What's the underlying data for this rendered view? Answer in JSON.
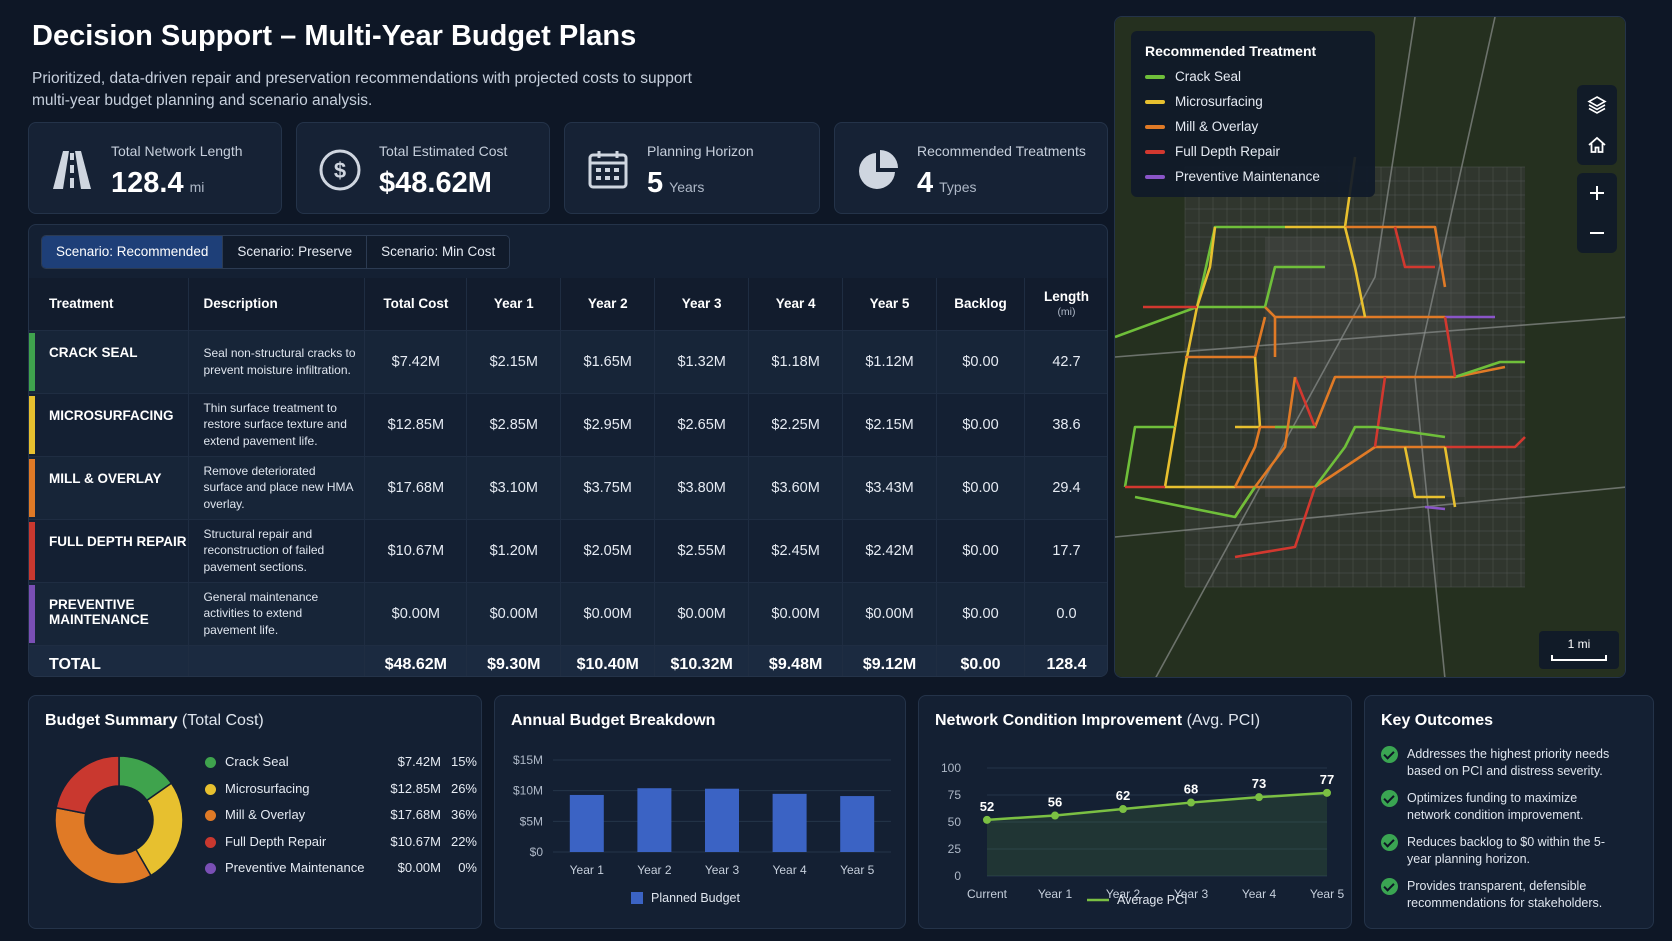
{
  "header": {
    "title": "Decision Support – Multi-Year Budget Plans",
    "subtitle": "Prioritized, data-driven repair and preservation recommendations with projected costs to support multi-year budget planning and scenario analysis."
  },
  "kpis": [
    {
      "label": "Total Network Length",
      "value": "128.4",
      "unit": "mi",
      "icon": "road-icon"
    },
    {
      "label": "Total Estimated Cost",
      "value": "$48.62M",
      "unit": "",
      "icon": "dollar-icon"
    },
    {
      "label": "Planning Horizon",
      "value": "5",
      "unit": "Years",
      "icon": "calendar-icon"
    },
    {
      "label": "Recommended Treatments",
      "value": "4",
      "unit": "Types",
      "icon": "pie-icon"
    }
  ],
  "scenarios": {
    "tabs": [
      "Scenario: Recommended",
      "Scenario: Preserve",
      "Scenario: Min Cost"
    ],
    "active": "Scenario: Recommended"
  },
  "table": {
    "headers": {
      "treatment": "Treatment",
      "description": "Description",
      "total": "Total Cost",
      "y1": "Year 1",
      "y2": "Year 2",
      "y3": "Year 3",
      "y4": "Year 4",
      "y5": "Year 5",
      "backlog": "Backlog",
      "length": "Length",
      "length_unit": "(mi)"
    },
    "rows": [
      {
        "name": "CRACK SEAL",
        "desc": "Seal non-structural cracks to prevent moisture infiltration.",
        "color": "#3fa34d",
        "total": "$7.42M",
        "y1": "$2.15M",
        "y2": "$1.65M",
        "y3": "$1.32M",
        "y4": "$1.18M",
        "y5": "$1.12M",
        "backlog": "$0.00",
        "length": "42.7"
      },
      {
        "name": "MICROSURFACING",
        "desc": "Thin surface treatment to restore surface texture and extend pavement life.",
        "color": "#e7c02f",
        "total": "$12.85M",
        "y1": "$2.85M",
        "y2": "$2.95M",
        "y3": "$2.65M",
        "y4": "$2.25M",
        "y5": "$2.15M",
        "backlog": "$0.00",
        "length": "38.6"
      },
      {
        "name": "MILL & OVERLAY",
        "desc": "Remove deteriorated surface and place new HMA overlay.",
        "color": "#e07a26",
        "total": "$17.68M",
        "y1": "$3.10M",
        "y2": "$3.75M",
        "y3": "$3.80M",
        "y4": "$3.60M",
        "y5": "$3.43M",
        "backlog": "$0.00",
        "length": "29.4"
      },
      {
        "name": "FULL DEPTH REPAIR",
        "desc": "Structural repair and reconstruction of failed pavement sections.",
        "color": "#c9382f",
        "total": "$10.67M",
        "y1": "$1.20M",
        "y2": "$2.05M",
        "y3": "$2.55M",
        "y4": "$2.45M",
        "y5": "$2.42M",
        "backlog": "$0.00",
        "length": "17.7"
      },
      {
        "name": "PREVENTIVE MAINTENANCE",
        "desc": "General maintenance activities to extend pavement life.",
        "color": "#7a4fb5",
        "total": "$0.00M",
        "y1": "$0.00M",
        "y2": "$0.00M",
        "y3": "$0.00M",
        "y4": "$0.00M",
        "y5": "$0.00M",
        "backlog": "$0.00",
        "length": "0.0"
      }
    ],
    "total": {
      "name": "TOTAL",
      "total": "$48.62M",
      "y1": "$9.30M",
      "y2": "$10.40M",
      "y3": "$10.32M",
      "y4": "$9.48M",
      "y5": "$9.12M",
      "backlog": "$0.00",
      "length": "128.4"
    }
  },
  "map": {
    "legend_title": "Recommended Treatment",
    "legend": [
      {
        "label": "Crack Seal",
        "color": "#6fbf3a"
      },
      {
        "label": "Microsurfacing",
        "color": "#e7c02f"
      },
      {
        "label": "Mill & Overlay",
        "color": "#e07a26"
      },
      {
        "label": "Full Depth Repair",
        "color": "#d2382f"
      },
      {
        "label": "Preventive Maintenance",
        "color": "#8a55c8"
      }
    ],
    "controls": [
      "layers-icon",
      "home-icon",
      "zoom-in-icon",
      "zoom-out-icon"
    ],
    "scale_label": "1 mi"
  },
  "budget_summary": {
    "title": "Budget Summary",
    "title_suffix": "(Total Cost)",
    "items": [
      {
        "label": "Crack Seal",
        "amount": "$7.42M",
        "pct": "15%",
        "color": "#3fa34d",
        "value": 7.42
      },
      {
        "label": "Microsurfacing",
        "amount": "$12.85M",
        "pct": "26%",
        "color": "#e7c02f",
        "value": 12.85
      },
      {
        "label": "Mill & Overlay",
        "amount": "$17.68M",
        "pct": "36%",
        "color": "#e07a26",
        "value": 17.68
      },
      {
        "label": "Full Depth Repair",
        "amount": "$10.67M",
        "pct": "22%",
        "color": "#c9382f",
        "value": 10.67
      },
      {
        "label": "Preventive Maintenance",
        "amount": "$0.00M",
        "pct": "0%",
        "color": "#7a4fb5",
        "value": 0
      }
    ]
  },
  "chart_data": [
    {
      "type": "pie",
      "title": "Budget Summary (Total Cost)",
      "categories": [
        "Crack Seal",
        "Microsurfacing",
        "Mill & Overlay",
        "Full Depth Repair",
        "Preventive Maintenance"
      ],
      "values": [
        7.42,
        12.85,
        17.68,
        10.67,
        0.0
      ]
    },
    {
      "type": "bar",
      "title": "Annual Budget Breakdown",
      "categories": [
        "Year 1",
        "Year 2",
        "Year 3",
        "Year 4",
        "Year 5"
      ],
      "series": [
        {
          "name": "Planned Budget",
          "values": [
            9.3,
            10.4,
            10.32,
            9.48,
            9.12
          ],
          "color": "#3b63c4"
        }
      ],
      "yticks": [
        "$0",
        "$5M",
        "$10M",
        "$15M"
      ],
      "ylim": [
        0,
        15
      ],
      "legend": "bottom"
    },
    {
      "type": "line",
      "title": "Network Condition Improvement",
      "title_suffix": "(Avg. PCI)",
      "categories": [
        "Current",
        "Year 1",
        "Year 2",
        "Year 3",
        "Year 4",
        "Year 5"
      ],
      "series": [
        {
          "name": "Average PCI",
          "values": [
            52,
            56,
            62,
            68,
            73,
            77
          ],
          "color": "#7bc043"
        }
      ],
      "yticks": [
        "0",
        "25",
        "50",
        "75",
        "100"
      ],
      "ylim": [
        0,
        100
      ],
      "legend": "bottom"
    }
  ],
  "key_outcomes": {
    "title": "Key Outcomes",
    "items": [
      "Addresses the highest priority needs based on PCI and distress severity.",
      "Optimizes funding to maximize network condition improvement.",
      "Reduces backlog to $0 within the 5-year planning horizon.",
      "Provides transparent, defensible recommendations for stakeholders."
    ]
  }
}
